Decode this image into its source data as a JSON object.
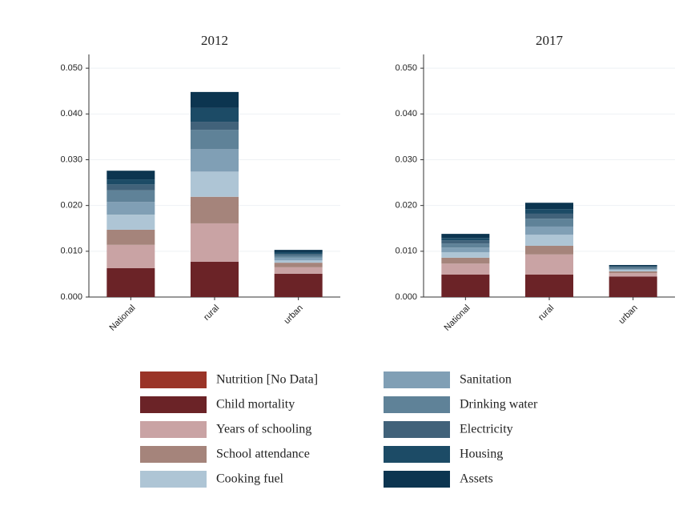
{
  "chart_data": [
    {
      "type": "bar",
      "stacked": true,
      "title": "2012",
      "categories": [
        "National",
        "rural",
        "urban"
      ],
      "ylim": [
        0,
        0.053
      ],
      "yticks": [
        {
          "value": 0,
          "label": "0.000"
        },
        {
          "value": 0.01,
          "label": "0.010"
        },
        {
          "value": 0.02,
          "label": "0.020"
        },
        {
          "value": 0.03,
          "label": "0.030"
        },
        {
          "value": 0.04,
          "label": "0.040"
        },
        {
          "value": 0.05,
          "label": "0.050"
        }
      ],
      "grid": true,
      "series": [
        {
          "name": "Nutrition [No Data]",
          "color": "#9a3427",
          "values": [
            null,
            null,
            null
          ]
        },
        {
          "name": "Child mortality",
          "color": "#6b2327",
          "values": [
            0.0063,
            0.0077,
            0.0051
          ]
        },
        {
          "name": "Years of schooling",
          "color": "#c9a3a4",
          "values": [
            0.0051,
            0.0084,
            0.0014
          ]
        },
        {
          "name": "School attendance",
          "color": "#a5847b",
          "values": [
            0.0033,
            0.0058,
            0.001
          ]
        },
        {
          "name": "Cooking fuel",
          "color": "#aec5d5",
          "values": [
            0.0033,
            0.0055,
            0.0005
          ]
        },
        {
          "name": "Sanitation",
          "color": "#809fb5",
          "values": [
            0.0028,
            0.0049,
            0.0006
          ]
        },
        {
          "name": "Drinking water",
          "color": "#5f8298",
          "values": [
            0.0025,
            0.0042,
            0.0005
          ]
        },
        {
          "name": "Electricity",
          "color": "#41627a",
          "values": [
            0.0013,
            0.0018,
            0.0003
          ]
        },
        {
          "name": "Housing",
          "color": "#1c4b66",
          "values": [
            0.0011,
            0.003,
            0.0004
          ]
        },
        {
          "name": "Assets",
          "color": "#0c3550",
          "values": [
            0.0019,
            0.0035,
            0.0005
          ]
        }
      ]
    },
    {
      "type": "bar",
      "stacked": true,
      "title": "2017",
      "categories": [
        "National",
        "rural",
        "urban"
      ],
      "ylim": [
        0,
        0.053
      ],
      "yticks": [
        {
          "value": 0,
          "label": "0.000"
        },
        {
          "value": 0.01,
          "label": "0.010"
        },
        {
          "value": 0.02,
          "label": "0.020"
        },
        {
          "value": 0.03,
          "label": "0.030"
        },
        {
          "value": 0.04,
          "label": "0.040"
        },
        {
          "value": 0.05,
          "label": "0.050"
        }
      ],
      "grid": true,
      "series": [
        {
          "values": [
            null,
            null,
            null
          ]
        },
        {
          "values": [
            0.0049,
            0.0049,
            0.0045
          ]
        },
        {
          "values": [
            0.0024,
            0.0044,
            0.0007
          ]
        },
        {
          "values": [
            0.0013,
            0.0019,
            0.0004
          ]
        },
        {
          "values": [
            0.0012,
            0.0024,
            0.0003
          ]
        },
        {
          "values": [
            0.001,
            0.0018,
            0.0002
          ]
        },
        {
          "values": [
            0.0009,
            0.0017,
            0.0003
          ]
        },
        {
          "values": [
            0.0007,
            0.0011,
            0.0002
          ]
        },
        {
          "values": [
            0.0005,
            0.001,
            0.0002
          ]
        },
        {
          "values": [
            0.0009,
            0.0014,
            0.0002
          ]
        }
      ]
    }
  ]
}
